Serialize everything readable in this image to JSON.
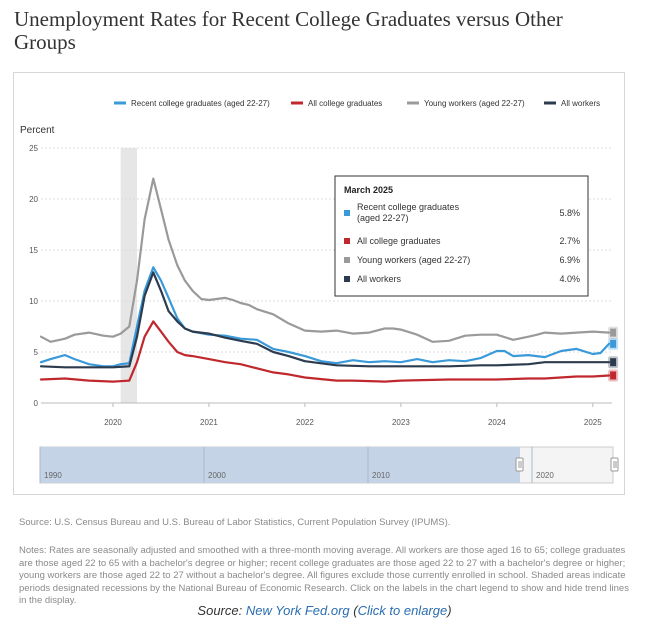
{
  "title": "Unemployment Rates for Recent College Graduates versus Other Groups",
  "source_text": "Source: U.S. Census Bureau and U.S. Bureau of Labor Statistics, Current Population Survey (IPUMS).",
  "notes_text": "Notes: Rates are seasonally adjusted and smoothed with a three-month moving average. All workers are those aged 16 to 65; college graduates are those aged 22 to 65 with a bachelor's degree or higher; recent college graduates are those aged 22 to 27 with a bachelor's degree or higher; young workers are those aged 22 to 27 without a bachelor's degree. All figures exclude those currently enrolled in school. Shaded areas indicate periods designated recessions by the National Bureau of Economic Research. Click on the labels in the chart legend to show and hide trend lines in the display.",
  "caption": {
    "prefix": "Source: ",
    "source_link": "New York Fed.org",
    "open_paren": " (",
    "enlarge_link": "Click to enlarge",
    "close_paren": ")"
  },
  "chart_data": {
    "type": "line",
    "ylabel": "Percent",
    "ylim": [
      0,
      25
    ],
    "yticks": [
      0,
      5,
      10,
      15,
      20,
      25
    ],
    "xlim": [
      2019.25,
      2025.2
    ],
    "xticks": [
      2020,
      2021,
      2022,
      2023,
      2024,
      2025
    ],
    "grid": true,
    "legend_position": "top",
    "recession_band": [
      2020.08,
      2020.25
    ],
    "series": [
      {
        "name": "Recent college graduates (aged 22-27)",
        "color": "#3a9ad9",
        "x": [
          2019.25,
          2019.35,
          2019.5,
          2019.6,
          2019.75,
          2019.9,
          2020.0,
          2020.08,
          2020.17,
          2020.25,
          2020.33,
          2020.42,
          2020.5,
          2020.58,
          2020.67,
          2020.75,
          2020.83,
          2021.0,
          2021.17,
          2021.33,
          2021.5,
          2021.67,
          2021.83,
          2022.0,
          2022.17,
          2022.33,
          2022.5,
          2022.67,
          2022.83,
          2023.0,
          2023.17,
          2023.33,
          2023.5,
          2023.67,
          2023.83,
          2024.0,
          2024.08,
          2024.17,
          2024.33,
          2024.5,
          2024.67,
          2024.83,
          2025.0,
          2025.08,
          2025.17
        ],
        "values": [
          4.0,
          4.3,
          4.7,
          4.3,
          3.8,
          3.6,
          3.6,
          3.8,
          3.9,
          7.5,
          11.0,
          13.3,
          12.0,
          10.3,
          8.3,
          7.3,
          7.0,
          6.7,
          6.6,
          6.3,
          6.2,
          5.3,
          5.0,
          4.6,
          4.1,
          3.9,
          4.2,
          4.0,
          4.1,
          4.0,
          4.3,
          4.0,
          4.2,
          4.1,
          4.4,
          5.1,
          5.1,
          4.6,
          4.7,
          4.5,
          5.1,
          5.3,
          4.8,
          4.9,
          5.8
        ]
      },
      {
        "name": "All college graduates",
        "color": "#c0282d",
        "x": [
          2019.25,
          2019.5,
          2019.75,
          2020.0,
          2020.17,
          2020.25,
          2020.33,
          2020.42,
          2020.5,
          2020.58,
          2020.67,
          2020.75,
          2020.83,
          2021.0,
          2021.17,
          2021.33,
          2021.5,
          2021.67,
          2021.83,
          2022.0,
          2022.33,
          2022.5,
          2022.83,
          2023.0,
          2023.5,
          2023.83,
          2024.0,
          2024.33,
          2024.5,
          2024.83,
          2025.0,
          2025.17
        ],
        "values": [
          2.3,
          2.4,
          2.2,
          2.1,
          2.2,
          4.0,
          6.5,
          8.0,
          7.0,
          6.0,
          5.0,
          4.7,
          4.6,
          4.3,
          4.0,
          3.8,
          3.4,
          3.0,
          2.8,
          2.5,
          2.2,
          2.2,
          2.1,
          2.2,
          2.3,
          2.3,
          2.3,
          2.4,
          2.4,
          2.6,
          2.6,
          2.7
        ]
      },
      {
        "name": "Young workers (aged 22-27)",
        "color": "#9a9a9a",
        "x": [
          2019.25,
          2019.35,
          2019.5,
          2019.6,
          2019.75,
          2019.9,
          2020.0,
          2020.08,
          2020.17,
          2020.25,
          2020.33,
          2020.42,
          2020.5,
          2020.58,
          2020.67,
          2020.75,
          2020.83,
          2020.92,
          2021.0,
          2021.08,
          2021.17,
          2021.25,
          2021.33,
          2021.42,
          2021.5,
          2021.67,
          2021.83,
          2022.0,
          2022.17,
          2022.33,
          2022.5,
          2022.67,
          2022.83,
          2022.92,
          2023.0,
          2023.17,
          2023.33,
          2023.5,
          2023.67,
          2023.83,
          2024.0,
          2024.17,
          2024.33,
          2024.42,
          2024.5,
          2024.67,
          2024.83,
          2025.0,
          2025.17
        ],
        "values": [
          6.5,
          6.0,
          6.3,
          6.7,
          6.9,
          6.6,
          6.5,
          6.8,
          7.5,
          12.0,
          18.0,
          22.0,
          19.0,
          16.0,
          13.5,
          12.0,
          11.0,
          10.2,
          10.1,
          10.2,
          10.3,
          10.1,
          9.8,
          9.6,
          9.2,
          8.7,
          7.8,
          7.1,
          7.0,
          7.1,
          6.8,
          6.9,
          7.3,
          7.3,
          7.2,
          6.7,
          6.0,
          6.1,
          6.6,
          6.7,
          6.7,
          6.2,
          6.5,
          6.7,
          6.9,
          6.8,
          6.9,
          7.0,
          6.9
        ]
      },
      {
        "name": "All workers",
        "color": "#2d3b4f",
        "x": [
          2019.25,
          2019.5,
          2019.75,
          2020.0,
          2020.17,
          2020.25,
          2020.33,
          2020.42,
          2020.5,
          2020.58,
          2020.67,
          2020.75,
          2020.83,
          2021.0,
          2021.17,
          2021.33,
          2021.5,
          2021.67,
          2021.83,
          2022.0,
          2022.33,
          2022.67,
          2023.0,
          2023.5,
          2023.83,
          2024.0,
          2024.33,
          2024.5,
          2024.83,
          2025.0,
          2025.17
        ],
        "values": [
          3.6,
          3.5,
          3.5,
          3.5,
          3.6,
          6.5,
          10.5,
          12.8,
          11.0,
          9.0,
          8.0,
          7.3,
          7.0,
          6.8,
          6.4,
          6.1,
          5.8,
          5.0,
          4.6,
          4.1,
          3.7,
          3.6,
          3.6,
          3.6,
          3.7,
          3.7,
          3.8,
          4.0,
          4.0,
          4.0,
          4.0
        ]
      }
    ],
    "tooltip": {
      "title": "March 2025",
      "rows": [
        {
          "label_line1": "Recent college graduates",
          "label_line2": "(aged 22-27)",
          "value": "5.8%",
          "color": "#3a9ad9"
        },
        {
          "label_line1": "All college graduates",
          "label_line2": "",
          "value": "2.7%",
          "color": "#c0282d"
        },
        {
          "label_line1": "Young workers (aged 22-27)",
          "label_line2": "",
          "value": "6.9%",
          "color": "#9a9a9a"
        },
        {
          "label_line1": "All workers",
          "label_line2": "",
          "value": "4.0%",
          "color": "#2d3b4f"
        }
      ]
    },
    "navigator": {
      "labels": [
        "1990",
        "2000",
        "2010",
        "2020"
      ]
    }
  }
}
